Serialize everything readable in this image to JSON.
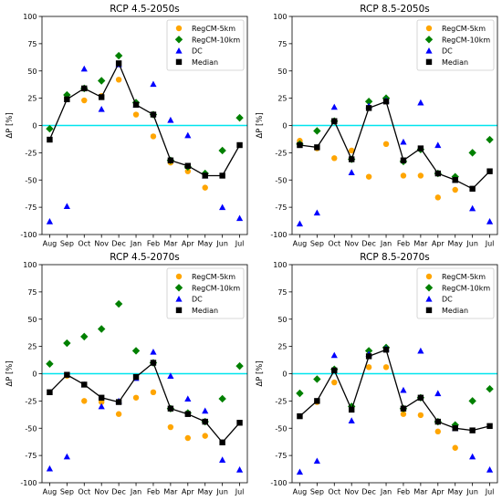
{
  "chart_data": [
    {
      "type": "scatter",
      "title": "RCP 4.5-2050s",
      "ylabel": "ΔP [%]",
      "categories": [
        "Aug",
        "Sep",
        "Oct",
        "Nov",
        "Dec",
        "Jan",
        "Feb",
        "Mar",
        "Apr",
        "May",
        "Jun",
        "Jul"
      ],
      "ylim": [
        -100,
        100
      ],
      "yticks": [
        -100,
        -75,
        -50,
        -25,
        0,
        25,
        50,
        75,
        100
      ],
      "reference_line": 0,
      "grid": false,
      "legend": "top-right",
      "series": [
        {
          "name": "RegCM-5km",
          "marker": "circle",
          "color": "#FFA500",
          "values": [
            null,
            25,
            23,
            27,
            42,
            10,
            -10,
            -34,
            -42,
            -57,
            null,
            null
          ]
        },
        {
          "name": "RegCM-10km",
          "marker": "diamond",
          "color": "#008000",
          "values": [
            -3,
            28,
            34,
            41,
            64,
            21,
            10,
            -32,
            -38,
            -44,
            -23,
            7
          ]
        },
        {
          "name": "DC",
          "marker": "triangle",
          "color": "#0000FF",
          "values": [
            -88,
            -74,
            52,
            15,
            56,
            19,
            38,
            5,
            -9,
            -46,
            -75,
            -85
          ]
        },
        {
          "name": "Median",
          "marker": "square",
          "color": "#000000",
          "line": true,
          "values": [
            -13,
            24,
            34,
            26,
            57,
            19,
            10,
            -32,
            -37,
            -46,
            -46,
            -18
          ]
        }
      ]
    },
    {
      "type": "scatter",
      "title": "RCP 8.5-2050s",
      "ylabel": "ΔP [%]",
      "categories": [
        "Aug",
        "Sep",
        "Oct",
        "Nov",
        "Dec",
        "Jan",
        "Feb",
        "Mar",
        "Apr",
        "May",
        "Jun",
        "Jul"
      ],
      "ylim": [
        -100,
        100
      ],
      "yticks": [
        -100,
        -75,
        -50,
        -25,
        0,
        25,
        50,
        75,
        100
      ],
      "reference_line": 0,
      "grid": false,
      "legend": "top-right",
      "series": [
        {
          "name": "RegCM-5km",
          "marker": "circle",
          "color": "#FFA500",
          "values": [
            -14,
            -21,
            -30,
            -23,
            -47,
            -17,
            -46,
            -46,
            -66,
            -59,
            null,
            null
          ]
        },
        {
          "name": "RegCM-10km",
          "marker": "diamond",
          "color": "#008000",
          "values": [
            -17,
            -5,
            4,
            -31,
            22,
            25,
            -33,
            -22,
            -44,
            -47,
            -25,
            -13
          ]
        },
        {
          "name": "DC",
          "marker": "triangle",
          "color": "#0000FF",
          "values": [
            -90,
            -80,
            17,
            -43,
            18,
            23,
            -15,
            21,
            -18,
            -50,
            -76,
            -88
          ]
        },
        {
          "name": "Median",
          "marker": "square",
          "color": "#000000",
          "line": true,
          "values": [
            -18,
            -20,
            4,
            -31,
            16,
            22,
            -32,
            -21,
            -44,
            -50,
            -58,
            -42
          ]
        }
      ]
    },
    {
      "type": "scatter",
      "title": "RCP 4.5-2070s",
      "ylabel": "ΔP [%]",
      "categories": [
        "Aug",
        "Sep",
        "Oct",
        "Nov",
        "Dec",
        "Jan",
        "Feb",
        "Mar",
        "Apr",
        "May",
        "Jun",
        "Jul"
      ],
      "ylim": [
        -100,
        100
      ],
      "yticks": [
        -100,
        -75,
        -50,
        -25,
        0,
        25,
        50,
        75,
        100
      ],
      "reference_line": 0,
      "grid": false,
      "legend": "top-right",
      "series": [
        {
          "name": "RegCM-5km",
          "marker": "circle",
          "color": "#FFA500",
          "values": [
            null,
            -2,
            -25,
            -26,
            -37,
            -22,
            -17,
            -49,
            -59,
            -57,
            null,
            null
          ]
        },
        {
          "name": "RegCM-10km",
          "marker": "diamond",
          "color": "#008000",
          "values": [
            9,
            28,
            34,
            41,
            64,
            21,
            10,
            -32,
            -36,
            -44,
            -23,
            7
          ]
        },
        {
          "name": "DC",
          "marker": "triangle",
          "color": "#0000FF",
          "values": [
            -87,
            -76,
            -10,
            -30,
            -25,
            -4,
            20,
            -2,
            -23,
            -34,
            -79,
            -88
          ]
        },
        {
          "name": "Median",
          "marker": "square",
          "color": "#000000",
          "line": true,
          "values": [
            -17,
            -1,
            -10,
            -22,
            -26,
            -3,
            10,
            -32,
            -37,
            -44,
            -63,
            -45
          ]
        }
      ]
    },
    {
      "type": "scatter",
      "title": "RCP 8.5-2070s",
      "ylabel": "ΔP [%]",
      "categories": [
        "Aug",
        "Sep",
        "Oct",
        "Nov",
        "Dec",
        "Jan",
        "Feb",
        "Mar",
        "Apr",
        "May",
        "Jun",
        "Jul"
      ],
      "ylim": [
        -100,
        100
      ],
      "yticks": [
        -100,
        -75,
        -50,
        -25,
        0,
        25,
        50,
        75,
        100
      ],
      "reference_line": 0,
      "grid": false,
      "legend": "top-right",
      "series": [
        {
          "name": "RegCM-5km",
          "marker": "circle",
          "color": "#FFA500",
          "values": [
            null,
            -26,
            -8,
            -31,
            6,
            6,
            -37,
            -38,
            -53,
            -68,
            null,
            null
          ]
        },
        {
          "name": "RegCM-10km",
          "marker": "diamond",
          "color": "#008000",
          "values": [
            -18,
            -5,
            4,
            -30,
            21,
            24,
            -32,
            -22,
            -44,
            -47,
            -25,
            -14
          ]
        },
        {
          "name": "DC",
          "marker": "triangle",
          "color": "#0000FF",
          "values": [
            -90,
            -80,
            17,
            -43,
            18,
            23,
            -15,
            21,
            -18,
            -50,
            -76,
            -88
          ]
        },
        {
          "name": "Median",
          "marker": "square",
          "color": "#000000",
          "line": true,
          "values": [
            -39,
            -25,
            3,
            -33,
            16,
            22,
            -32,
            -22,
            -44,
            -50,
            -52,
            -48
          ]
        }
      ]
    }
  ]
}
